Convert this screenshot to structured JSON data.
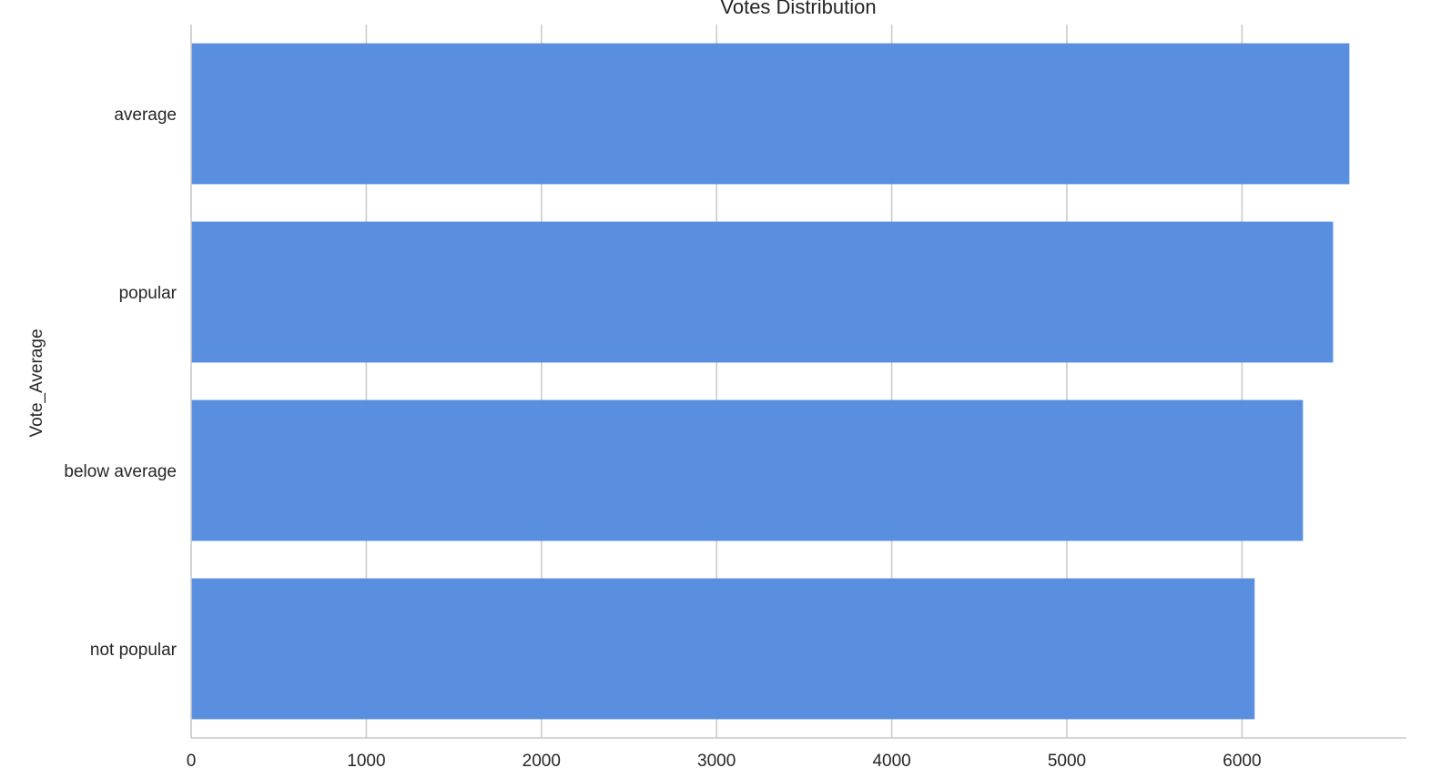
{
  "chart_data": {
    "type": "bar",
    "orientation": "horizontal",
    "title": "Votes Distribution",
    "xlabel": "",
    "ylabel": "Vote_Average",
    "categories": [
      "average",
      "popular",
      "below average",
      "not popular"
    ],
    "values": [
      6613,
      6520,
      6348,
      6072
    ],
    "x_ticks": [
      0,
      1000,
      2000,
      3000,
      4000,
      5000,
      6000
    ],
    "xlim": [
      0,
      6950
    ],
    "grid": "vertical",
    "legend": "none",
    "bar_color": "#5a8fe0",
    "grid_color": "#cccccc"
  }
}
